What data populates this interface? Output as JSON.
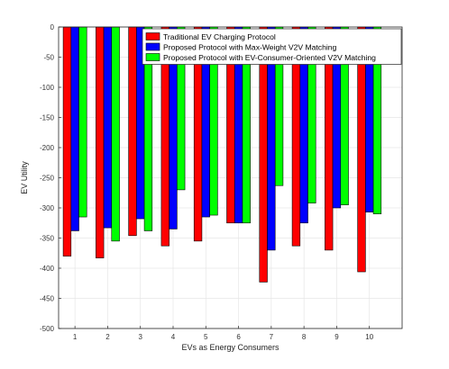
{
  "chart_data": {
    "type": "bar",
    "title": "",
    "xlabel": "EVs as Energy Consumers",
    "ylabel": "EV Utility",
    "categories": [
      "1",
      "2",
      "3",
      "4",
      "5",
      "6",
      "7",
      "8",
      "9",
      "10"
    ],
    "ylim": [
      -500,
      0
    ],
    "yticks": [
      0,
      -50,
      -100,
      -150,
      -200,
      -250,
      -300,
      -350,
      -400,
      -450,
      -500
    ],
    "grid": true,
    "legend_position": "top-right",
    "series": [
      {
        "name": "Traditional EV Charging Protocol",
        "color": "#ff0000",
        "values": [
          -380,
          -383,
          -346,
          -363,
          -355,
          -325,
          -423,
          -363,
          -370,
          -406
        ]
      },
      {
        "name": "Proposed Protocol with Max-Weight V2V Matching",
        "color": "#0000ff",
        "values": [
          -338,
          -333,
          -318,
          -335,
          -315,
          -325,
          -370,
          -325,
          -300,
          -307
        ]
      },
      {
        "name": "Proposed Protocol with EV-Consumer-Oriented V2V Matching",
        "color": "#00ff00",
        "values": [
          -315,
          -355,
          -338,
          -270,
          -312,
          -325,
          -263,
          -292,
          -295,
          -310
        ]
      }
    ]
  }
}
